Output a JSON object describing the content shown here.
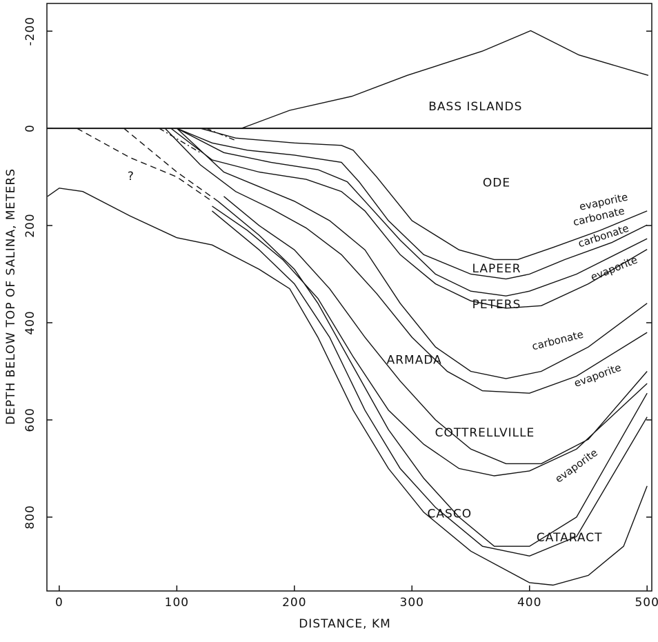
{
  "chart_data": {
    "type": "line",
    "x_label": "DISTANCE, KM",
    "y_label": "DEPTH BELOW TOP OF SALINA, METERS",
    "xlim": [
      -10.5,
      504
    ],
    "ylim": [
      952,
      -257
    ],
    "xticks": [
      0,
      100,
      200,
      300,
      400,
      500
    ],
    "yticks": [
      -200,
      0,
      200,
      400,
      600,
      800
    ],
    "zero_line": true,
    "color": "#111111",
    "series": [
      {
        "x": [
          155,
          196,
          249,
          296,
          360,
          401,
          442,
          501
        ],
        "values": [
          0,
          -37,
          -66,
          -109,
          -159,
          -201,
          -151,
          -109
        ]
      },
      {
        "x": [
          120,
          150,
          200,
          240,
          250,
          270,
          300,
          340,
          370,
          390,
          420,
          460,
          500
        ],
        "values": [
          0,
          20,
          30,
          35,
          45,
          100,
          190,
          250,
          270,
          270,
          245,
          210,
          170
        ]
      },
      {
        "x": [
          100,
          130,
          160,
          200,
          240,
          255,
          280,
          310,
          350,
          380,
          400,
          430,
          470,
          500
        ],
        "values": [
          0,
          30,
          45,
          55,
          70,
          110,
          190,
          260,
          300,
          310,
          300,
          270,
          235,
          199
        ]
      },
      {
        "x": [
          100,
          140,
          180,
          220,
          245,
          260,
          290,
          320,
          350,
          380,
          400,
          440,
          500
        ],
        "values": [
          0,
          50,
          70,
          85,
          110,
          150,
          230,
          300,
          335,
          345,
          335,
          300,
          227
        ]
      },
      {
        "x": [
          95,
          130,
          170,
          210,
          240,
          260,
          290,
          320,
          350,
          380,
          410,
          450,
          500
        ],
        "values": [
          0,
          65,
          90,
          105,
          130,
          170,
          260,
          320,
          355,
          370,
          365,
          320,
          249
        ]
      },
      {
        "x": [
          100,
          140,
          170,
          200,
          230,
          260,
          290,
          320,
          350,
          380,
          410,
          450,
          500
        ],
        "values": [
          0,
          90,
          120,
          150,
          190,
          250,
          360,
          450,
          500,
          515,
          500,
          450,
          360
        ]
      },
      {
        "x": [
          90,
          120,
          150,
          180,
          210,
          240,
          270,
          300,
          330,
          360,
          400,
          440,
          500
        ],
        "values": [
          0,
          75,
          130,
          165,
          205,
          260,
          340,
          430,
          500,
          540,
          545,
          510,
          420
        ]
      },
      {
        "x": [
          140,
          170,
          200,
          230,
          260,
          290,
          320,
          350,
          380,
          410,
          450,
          500
        ],
        "values": [
          140,
          200,
          250,
          330,
          430,
          520,
          600,
          660,
          690,
          690,
          640,
          500
        ]
      },
      {
        "x": [
          130,
          160,
          190,
          220,
          250,
          280,
          310,
          340,
          370,
          400,
          440,
          500
        ],
        "values": [
          160,
          210,
          270,
          350,
          470,
          580,
          650,
          700,
          715,
          705,
          660,
          525
        ]
      },
      {
        "x": [
          135,
          170,
          200,
          220,
          250,
          280,
          310,
          340,
          370,
          400,
          440,
          500
        ],
        "values": [
          150,
          220,
          290,
          360,
          490,
          620,
          720,
          800,
          860,
          860,
          800,
          545
        ]
      },
      {
        "x": [
          130,
          170,
          200,
          230,
          260,
          290,
          320,
          360,
          400,
          440,
          500
        ],
        "values": [
          170,
          250,
          320,
          430,
          580,
          700,
          780,
          860,
          880,
          840,
          594
        ]
      },
      {
        "x": [
          -10,
          0,
          20,
          60,
          100,
          130,
          170,
          196,
          220,
          250,
          280,
          310,
          350,
          400,
          420,
          450,
          480,
          500
        ],
        "values": [
          140,
          123,
          130,
          180,
          225,
          240,
          290,
          330,
          430,
          580,
          700,
          790,
          870,
          935,
          940,
          920,
          860,
          736
        ]
      },
      {
        "x": [
          15,
          60,
          100,
          130
        ],
        "values": [
          0,
          60,
          100,
          150
        ],
        "style": "dashed"
      },
      {
        "x": [
          55,
          100,
          135
        ],
        "values": [
          0,
          90,
          150
        ],
        "style": "dashed"
      },
      {
        "x": [
          85,
          120
        ],
        "values": [
          0,
          50
        ],
        "style": "dashdot"
      },
      {
        "x": [
          125,
          150
        ],
        "values": [
          0,
          25
        ],
        "style": "dashdot"
      }
    ],
    "annotations": [
      {
        "text": "BASS ISLANDS",
        "x": 354,
        "y": -44
      },
      {
        "text": "ODE",
        "x": 372,
        "y": 113
      },
      {
        "text": "LAPEER",
        "x": 372,
        "y": 289
      },
      {
        "text": "PETERS",
        "x": 372,
        "y": 363
      },
      {
        "text": "ARMADA",
        "x": 302,
        "y": 477
      },
      {
        "text": "COTTRELLVILLE",
        "x": 362,
        "y": 627
      },
      {
        "text": "CASCO",
        "x": 332,
        "y": 794
      },
      {
        "text": "CATARACT",
        "x": 434,
        "y": 843
      },
      {
        "text": "?",
        "x": 61,
        "y": 99
      },
      {
        "text": "evaporite",
        "x": 463,
        "y": 152
      },
      {
        "text": "carbonate",
        "x": 459,
        "y": 182
      },
      {
        "text": "carbonate",
        "x": 463,
        "y": 222
      },
      {
        "text": "evaporite",
        "x": 472,
        "y": 289
      },
      {
        "text": "carbonate",
        "x": 424,
        "y": 437
      },
      {
        "text": "evaporite",
        "x": 458,
        "y": 509
      },
      {
        "text": "evaporite",
        "x": 440,
        "y": 695
      }
    ]
  }
}
